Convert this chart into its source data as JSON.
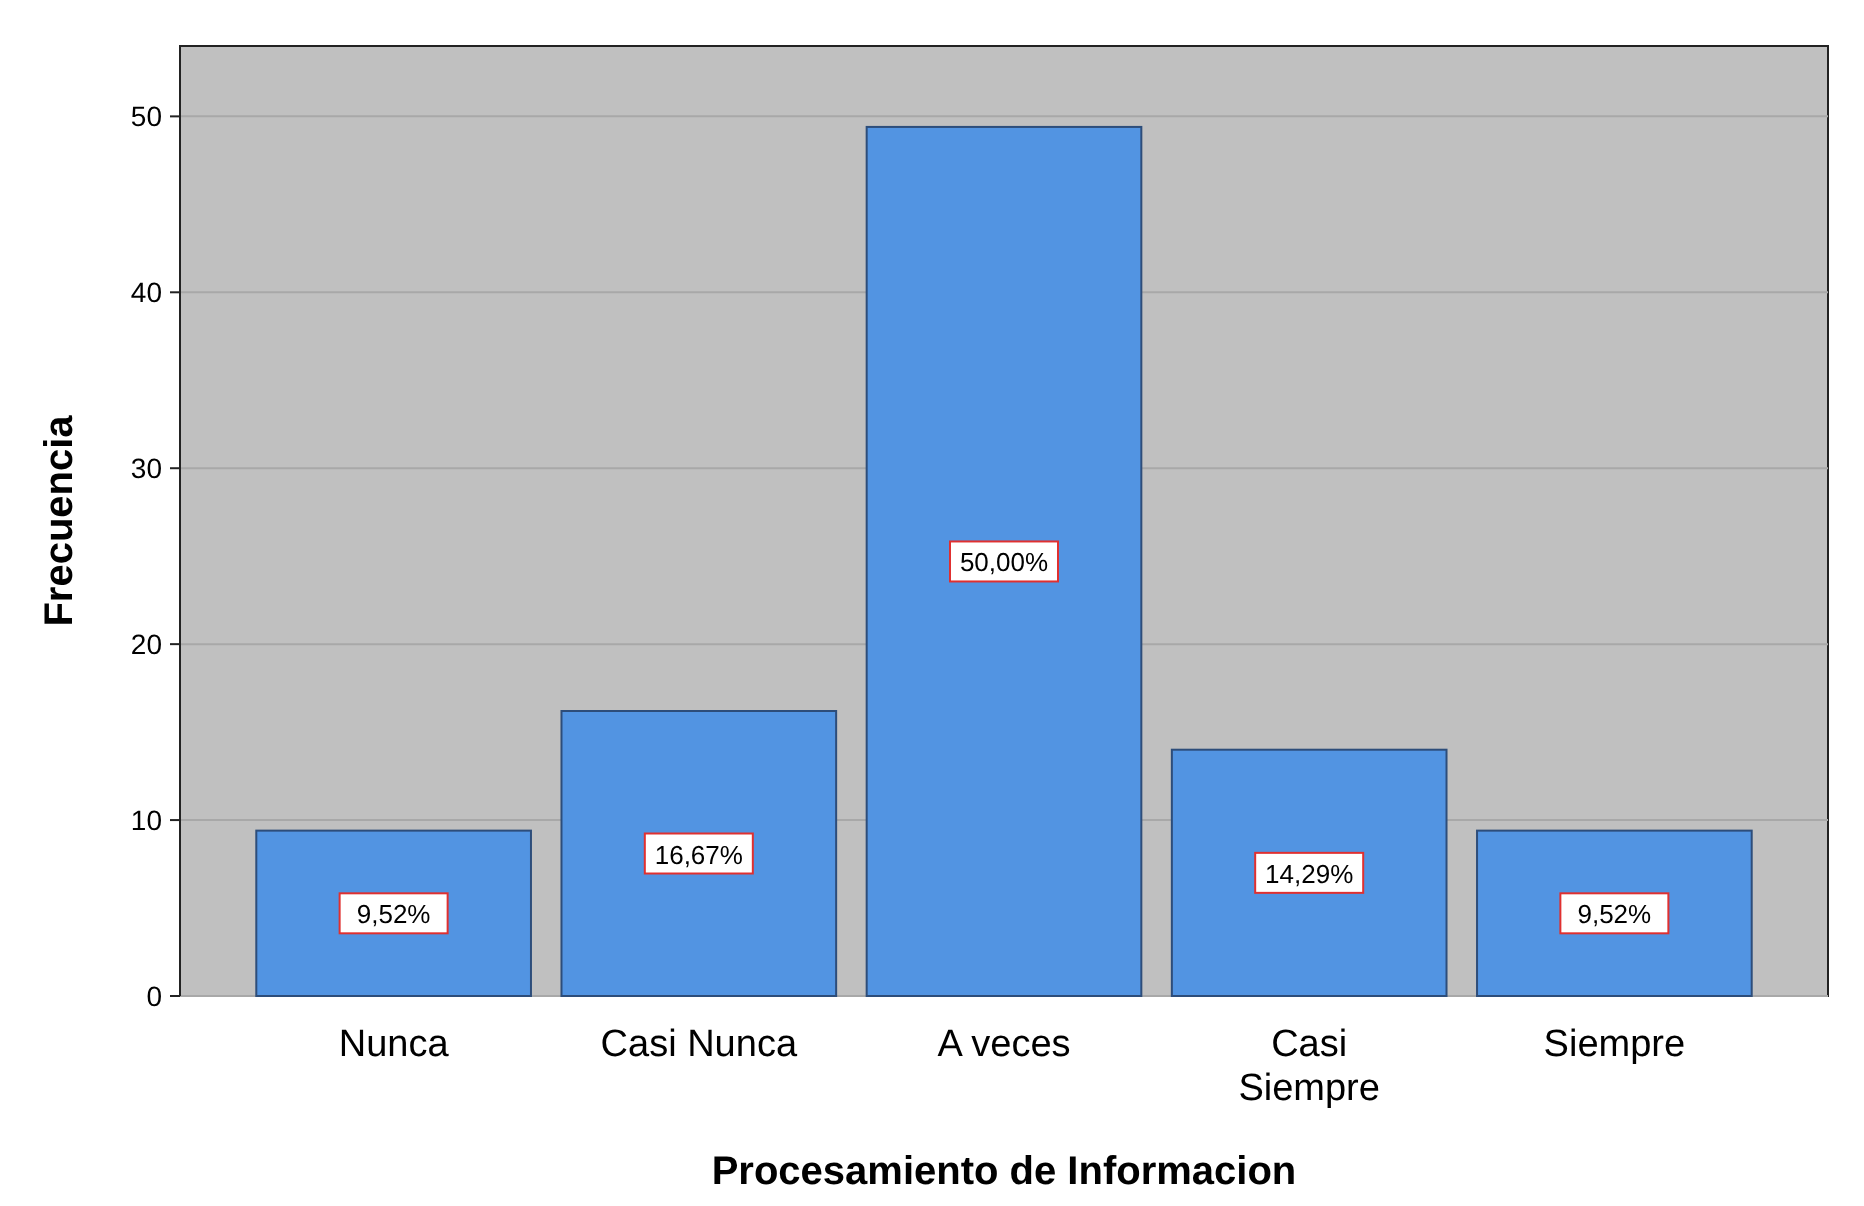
{
  "chart_data": {
    "type": "bar",
    "xlabel": "Procesamiento de Informacion",
    "ylabel": "Frecuencia",
    "categories": [
      "Nunca",
      "Casi Nunca",
      "A veces",
      "Casi Siempre",
      "Siempre"
    ],
    "values": [
      9.4,
      16.2,
      49.4,
      14,
      9.4
    ],
    "annotations": [
      "9,52%",
      "16,67%",
      "50,00%",
      "14,29%",
      "9,52%"
    ],
    "color": "#5294e2",
    "ylim": [
      0,
      54
    ],
    "yticks": [
      0,
      10,
      20,
      30,
      40,
      50
    ],
    "grid": "y"
  }
}
